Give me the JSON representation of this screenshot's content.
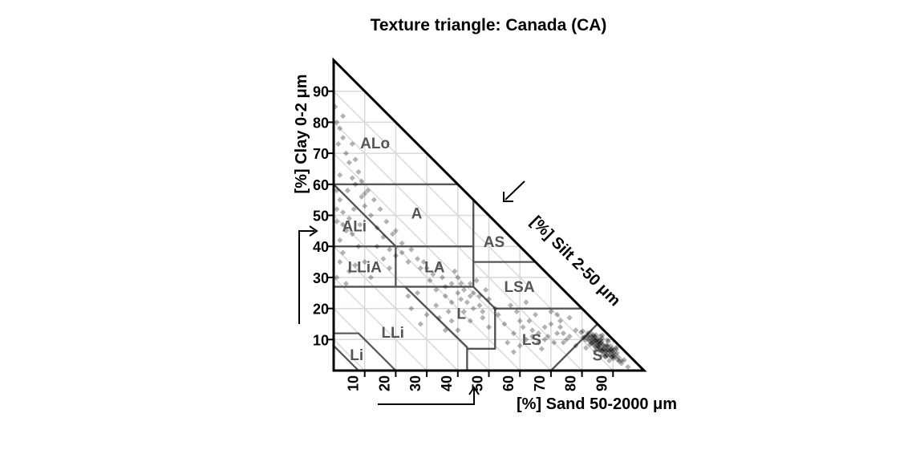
{
  "chart_data": {
    "type": "scatter",
    "title": "Texture triangle: Canada (CA)",
    "axes": {
      "clay": {
        "label": "[%] Clay 0-2 μm",
        "ticks": [
          "10",
          "20",
          "30",
          "40",
          "50",
          "60",
          "70",
          "80",
          "90"
        ]
      },
      "silt": {
        "label": "[%] Silt 2-50 μm"
      },
      "sand": {
        "label": "[%] Sand 50-2000 μm",
        "ticks": [
          "10",
          "20",
          "30",
          "40",
          "50",
          "60",
          "70",
          "80",
          "90"
        ]
      }
    },
    "grid": true,
    "classes": [
      {
        "label": "ALo",
        "polygon": [
          [
            0,
            100
          ],
          [
            40,
            60
          ],
          [
            0,
            60
          ]
        ]
      },
      {
        "label": "A",
        "polygon": [
          [
            0,
            60
          ],
          [
            40,
            60
          ],
          [
            45,
            55
          ],
          [
            45,
            40
          ],
          [
            20,
            40
          ]
        ]
      },
      {
        "label": "ALi",
        "polygon": [
          [
            0,
            60
          ],
          [
            20,
            40
          ],
          [
            0,
            40
          ]
        ]
      },
      {
        "label": "AS",
        "polygon": [
          [
            45,
            55
          ],
          [
            45,
            35
          ],
          [
            65,
            35
          ]
        ]
      },
      {
        "label": "LLiA",
        "polygon": [
          [
            0,
            40
          ],
          [
            20,
            40
          ],
          [
            20,
            27
          ],
          [
            0,
            27
          ]
        ]
      },
      {
        "label": "LA",
        "polygon": [
          [
            20,
            40
          ],
          [
            45,
            40
          ],
          [
            45,
            27
          ],
          [
            20,
            27
          ]
        ]
      },
      {
        "label": "LSA",
        "polygon": [
          [
            45,
            35
          ],
          [
            65,
            35
          ],
          [
            80,
            20
          ],
          [
            52,
            20
          ],
          [
            45,
            27
          ]
        ]
      },
      {
        "label": "L",
        "polygon": [
          [
            23,
            27
          ],
          [
            45,
            27
          ],
          [
            52,
            20
          ],
          [
            52,
            7
          ],
          [
            43,
            7
          ],
          [
            43,
            7.5
          ]
        ]
      },
      {
        "label": "LLi",
        "polygon": [
          [
            0,
            27
          ],
          [
            23,
            27
          ],
          [
            43,
            7.5
          ],
          [
            43,
            0
          ],
          [
            8,
            0
          ],
          [
            0,
            8
          ]
        ]
      },
      {
        "label": "Li",
        "polygon": [
          [
            0,
            12
          ],
          [
            8,
            12
          ],
          [
            20,
            0
          ],
          [
            0,
            0
          ]
        ]
      },
      {
        "label": "LS",
        "polygon": [
          [
            52,
            20
          ],
          [
            80,
            20
          ],
          [
            85,
            15
          ],
          [
            70,
            0
          ],
          [
            43,
            0
          ],
          [
            43,
            7
          ],
          [
            52,
            7
          ]
        ]
      },
      {
        "label": "S",
        "polygon": [
          [
            85,
            15
          ],
          [
            70,
            0
          ],
          [
            100,
            0
          ]
        ]
      }
    ],
    "points": [
      [
        89.0,
        6.0
      ],
      [
        86.4,
        9.4
      ],
      [
        83.6,
        9.2
      ],
      [
        86.3,
        6.3
      ],
      [
        89.3,
        6.8
      ],
      [
        88.5,
        9.4
      ],
      [
        91.0,
        7.4
      ],
      [
        90.2,
        4.6
      ],
      [
        87.6,
        4.4
      ],
      [
        89.7,
        7.0
      ],
      [
        80.9,
        10.9
      ],
      [
        81.3,
        7.3
      ],
      [
        91.3,
        5.7
      ],
      [
        84.3,
        6.3
      ],
      [
        85.5,
        7.5
      ],
      [
        92.8,
        3.2
      ],
      [
        86.6,
        11.4
      ],
      [
        85.1,
        8.9
      ],
      [
        89.6,
        4.4
      ],
      [
        87.4,
        4.6
      ],
      [
        88.0,
        7.0
      ],
      [
        84.0,
        11.0
      ],
      [
        86.0,
        9.0
      ],
      [
        84.7,
        7.3
      ],
      [
        80.4,
        10.6
      ],
      [
        83.0,
        9.0
      ],
      [
        87.4,
        5.6
      ],
      [
        85.5,
        8.5
      ],
      [
        79.7,
        12.3
      ],
      [
        88.8,
        6.2
      ],
      [
        89.8,
        5.2
      ],
      [
        83.2,
        8.8
      ],
      [
        85.0,
        10.0
      ],
      [
        91.6,
        3.4
      ],
      [
        82.5,
        9.5
      ],
      [
        84.5,
        11.5
      ],
      [
        86.8,
        8.2
      ],
      [
        90.7,
        4.3
      ],
      [
        94.8,
        1.2
      ],
      [
        87.6,
        6.4
      ],
      [
        82.1,
        10.9
      ],
      [
        86.6,
        6.4
      ],
      [
        88.1,
        7.9
      ],
      [
        90.9,
        5.1
      ],
      [
        84.2,
        9.8
      ],
      [
        82.0,
        10.0
      ],
      [
        90.2,
        5.8
      ],
      [
        86.1,
        8.9
      ],
      [
        83.8,
        8.2
      ],
      [
        88.2,
        4.8
      ],
      [
        85.5,
        9.5
      ],
      [
        81.9,
        12.1
      ],
      [
        84.1,
        10.9
      ],
      [
        92.7,
        2.3
      ],
      [
        89.8,
        6.2
      ],
      [
        87.1,
        6.9
      ],
      [
        84.8,
        9.2
      ],
      [
        86.0,
        7.0
      ],
      [
        91.8,
        4.2
      ],
      [
        83.2,
        10.8
      ],
      [
        88.2,
        7.8
      ],
      [
        83.8,
        10.2
      ],
      [
        87.0,
        8.0
      ],
      [
        85.7,
        8.3
      ],
      [
        81.1,
        9.9
      ],
      [
        89.6,
        4.4
      ],
      [
        88.0,
        5.0
      ],
      [
        89.1,
        7.9
      ],
      [
        86.4,
        6.6
      ],
      [
        85.3,
        7.7
      ],
      [
        82.9,
        11.1
      ],
      [
        90.3,
        6.7
      ],
      [
        93.6,
        3.4
      ],
      [
        84.2,
        8.8
      ],
      [
        83.7,
        11.3
      ],
      [
        86.6,
        10.4
      ],
      [
        88.8,
        3.2
      ],
      [
        80.3,
        12.7
      ],
      [
        84.4,
        9.6
      ],
      [
        87.8,
        6.2
      ],
      [
        82.6,
        8.4
      ],
      [
        89.0,
        5.0
      ],
      [
        85.0,
        8.0
      ],
      [
        90.1,
        3.9
      ],
      [
        86.9,
        7.1
      ],
      [
        83.1,
        9.9
      ],
      [
        92.0,
        3.0
      ],
      [
        87.8,
        8.2
      ],
      [
        84.3,
        7.7
      ],
      [
        81.9,
        11.1
      ],
      [
        88.5,
        6.5
      ],
      [
        86.0,
        10.0
      ],
      [
        91.1,
        6.9
      ],
      [
        85.4,
        6.6
      ],
      [
        84.9,
        10.1
      ],
      [
        89.2,
        6.8
      ],
      [
        86.8,
        5.2
      ],
      [
        83.0,
        12.0
      ],
      [
        88.2,
        9.8
      ],
      [
        85.9,
        11.1
      ],
      [
        75.0,
        10.0
      ],
      [
        72.0,
        12.0
      ],
      [
        78.0,
        13.0
      ],
      [
        70.0,
        15.0
      ],
      [
        68.0,
        14.0
      ],
      [
        74.0,
        9.0
      ],
      [
        66.0,
        12.0
      ],
      [
        71.0,
        9.0
      ],
      [
        64.0,
        13.0
      ],
      [
        73.0,
        16.0
      ],
      [
        62.0,
        10.0
      ],
      [
        60.0,
        16.0
      ],
      [
        76.0,
        17.0
      ],
      [
        58.0,
        12.0
      ],
      [
        69.0,
        11.0
      ],
      [
        65.0,
        18.0
      ],
      [
        55.0,
        15.0
      ],
      [
        63.0,
        16.0
      ],
      [
        59.0,
        19.0
      ],
      [
        72.0,
        18.0
      ],
      [
        67.0,
        7.0
      ],
      [
        78.0,
        8.0
      ],
      [
        70.0,
        19.0
      ],
      [
        61.0,
        14.0
      ],
      [
        56.0,
        9.0
      ],
      [
        68.0,
        10.0
      ],
      [
        74.0,
        12.0
      ],
      [
        50.0,
        14.0
      ],
      [
        53.0,
        18.0
      ],
      [
        57.0,
        21.0
      ],
      [
        62.0,
        22.0
      ],
      [
        48.0,
        17.0
      ],
      [
        52.0,
        20.0
      ],
      [
        44.0,
        16.0
      ],
      [
        58.0,
        6.0
      ],
      [
        66.0,
        9.0
      ],
      [
        60.0,
        8.0
      ],
      [
        73.0,
        14.0
      ],
      [
        76.0,
        11.0
      ],
      [
        64.0,
        11.0
      ],
      [
        47.0,
        24.0
      ],
      [
        43.0,
        22.0
      ],
      [
        50.0,
        23.0
      ],
      [
        45.0,
        20.0
      ],
      [
        40.0,
        25.0
      ],
      [
        38.0,
        22.0
      ],
      [
        42.0,
        19.0
      ],
      [
        49.0,
        26.0
      ],
      [
        36.0,
        27.0
      ],
      [
        44.0,
        28.0
      ],
      [
        40.0,
        30.0
      ],
      [
        35.0,
        30.0
      ],
      [
        46.0,
        29.0
      ],
      [
        32.0,
        31.0
      ],
      [
        38.0,
        28.0
      ],
      [
        30.0,
        33.0
      ],
      [
        34.0,
        34.0
      ],
      [
        41.0,
        23.0
      ],
      [
        37.0,
        19.0
      ],
      [
        47.0,
        21.0
      ],
      [
        31.0,
        29.0
      ],
      [
        42.0,
        26.0
      ],
      [
        39.0,
        32.0
      ],
      [
        28.0,
        33.0
      ],
      [
        44.0,
        24.0
      ],
      [
        33.0,
        26.0
      ],
      [
        48.0,
        19.0
      ],
      [
        36.0,
        24.0
      ],
      [
        45.0,
        25.0
      ],
      [
        41.0,
        28.0
      ],
      [
        38.0,
        16.0
      ],
      [
        33.0,
        21.0
      ],
      [
        30.0,
        18.0
      ],
      [
        36.0,
        13.0
      ],
      [
        25.0,
        20.0
      ],
      [
        28.0,
        15.0
      ],
      [
        40.0,
        13.0
      ],
      [
        24.0,
        24.0
      ],
      [
        34.0,
        17.0
      ],
      [
        27.0,
        25.0
      ],
      [
        20.0,
        37.0
      ],
      [
        24.0,
        35.0
      ],
      [
        18.0,
        39.0
      ],
      [
        27.0,
        36.0
      ],
      [
        22.0,
        41.0
      ],
      [
        16.0,
        43.0
      ],
      [
        25.0,
        39.0
      ],
      [
        14.0,
        46.0
      ],
      [
        20.0,
        45.0
      ],
      [
        29.0,
        35.0
      ],
      [
        12.0,
        50.0
      ],
      [
        17.0,
        48.0
      ],
      [
        10.0,
        53.0
      ],
      [
        15.0,
        52.0
      ],
      [
        9.0,
        56.0
      ],
      [
        19.0,
        44.0
      ],
      [
        13.0,
        55.0
      ],
      [
        22.0,
        38.0
      ],
      [
        7.0,
        60.0
      ],
      [
        11.0,
        58.0
      ],
      [
        6.0,
        62.0
      ],
      [
        8.0,
        64.0
      ],
      [
        5.0,
        67.0
      ],
      [
        9.0,
        61.0
      ],
      [
        4.0,
        70.0
      ],
      [
        6.0,
        73.0
      ],
      [
        3.0,
        75.0
      ],
      [
        2.0,
        78.0
      ],
      [
        7.0,
        68.0
      ],
      [
        10.0,
        57.0
      ],
      [
        2.0,
        55.0
      ],
      [
        3.0,
        51.0
      ],
      [
        1.0,
        48.0
      ],
      [
        4.0,
        45.0
      ],
      [
        2.0,
        42.0
      ],
      [
        5.0,
        49.0
      ],
      [
        1.0,
        58.0
      ],
      [
        3.0,
        38.0
      ],
      [
        2.0,
        35.0
      ],
      [
        5.0,
        32.0
      ],
      [
        1.0,
        30.0
      ],
      [
        4.0,
        28.0
      ],
      [
        8.0,
        40.0
      ],
      [
        10.0,
        35.0
      ],
      [
        12.0,
        30.0
      ],
      [
        7.0,
        34.0
      ],
      [
        6.0,
        44.0
      ],
      [
        3.0,
        47.0
      ],
      [
        1.0,
        52.0
      ],
      [
        2.0,
        63.0
      ],
      [
        1.5,
        73.0
      ],
      [
        1.0,
        80.0
      ],
      [
        0.5,
        85.0
      ],
      [
        3.0,
        82.0
      ],
      [
        4.5,
        58.0
      ],
      [
        6.5,
        52.0
      ],
      [
        8.5,
        47.0
      ],
      [
        14.0,
        40.0
      ],
      [
        16.0,
        36.0
      ],
      [
        18.0,
        33.0
      ]
    ]
  }
}
